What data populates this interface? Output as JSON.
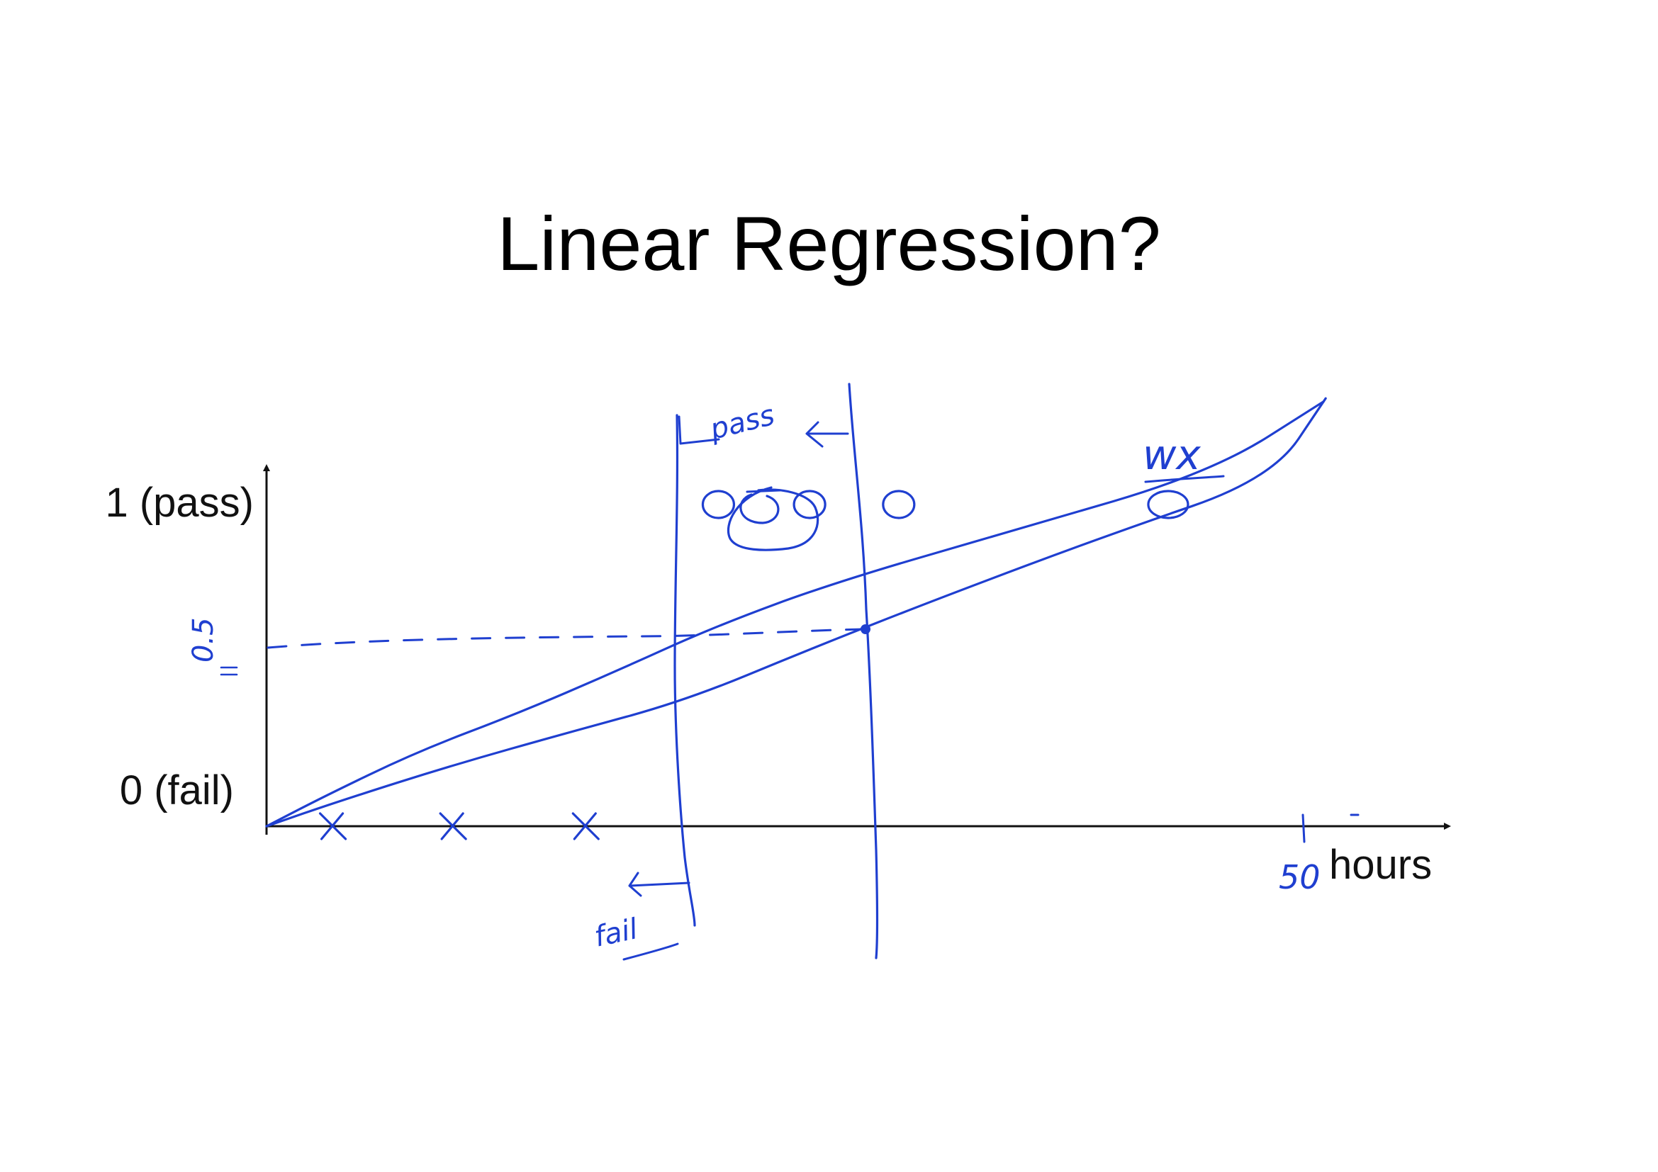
{
  "slide": {
    "title": "Linear Regression?"
  },
  "colors": {
    "axis": "#111111",
    "ink": "#1f3fd0"
  },
  "chart_data": {
    "type": "scatter",
    "title": "Linear Regression?",
    "xlabel": "hours",
    "ylabel": "",
    "y_ticks": [
      {
        "value": 1,
        "label": "1 (pass)"
      },
      {
        "value": 0,
        "label": "0 (fail)"
      }
    ],
    "xlim": [
      0,
      50
    ],
    "ylim": [
      0,
      1
    ],
    "grid": false,
    "series": [
      {
        "marker": "x",
        "x": [
          3.2,
          9.0,
          15.4
        ],
        "y": [
          0,
          0,
          0
        ]
      },
      {
        "marker": "o",
        "x": [
          21.8,
          26.2,
          30.5,
          43.5
        ],
        "y": [
          1,
          1,
          1,
          1
        ]
      }
    ],
    "annotations": {
      "threshold_label": "0.5",
      "x_tick_label": "50",
      "line_label": "wx",
      "pass_label": "pass",
      "fail_label": "fail"
    },
    "hand_drawn_lines": [
      {
        "x": [
          0,
          2.7,
          7.2,
          12.1,
          16.8,
          21.6,
          27.5,
          36.1,
          45.6,
          51.0
        ],
        "y": [
          0,
          0.09,
          0.23,
          0.35,
          0.48,
          0.62,
          0.76,
          0.92,
          1.1,
          1.32
        ]
      },
      {
        "x": [
          0,
          3.6,
          9.0,
          14.5,
          20.2,
          26.2,
          32.5,
          40.8,
          48.5,
          51.1
        ],
        "y": [
          0,
          0.08,
          0.19,
          0.29,
          0.39,
          0.55,
          0.71,
          0.91,
          1.08,
          1.33
        ]
      }
    ]
  }
}
